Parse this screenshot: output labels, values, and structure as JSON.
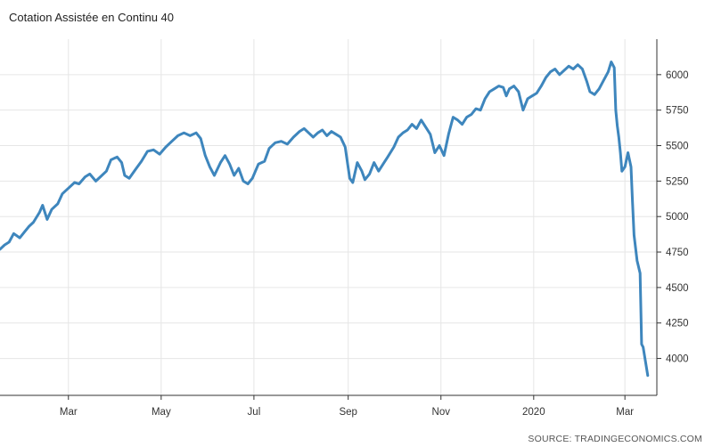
{
  "chart_data": {
    "type": "line",
    "title": "Cotation Assistée en Continu 40",
    "source": "SOURCE: TRADINGECONOMICS.COM",
    "xlabel": "",
    "ylabel": "",
    "x_ticks": [
      "Mar",
      "May",
      "Jul",
      "Sep",
      "Nov",
      "2020",
      "Mar"
    ],
    "y_ticks": [
      4000,
      4250,
      4500,
      4750,
      5000,
      5250,
      5500,
      5750,
      6000
    ],
    "ylim": [
      3740,
      6250
    ],
    "xlim": [
      "2019-01-15",
      "2020-03-22"
    ],
    "grid": true,
    "y_axis_position": "right",
    "line_color": "#3e86bd",
    "series": [
      {
        "values": [
          [
            "2019-01-15",
            4770
          ],
          [
            "2019-01-18",
            4800
          ],
          [
            "2019-01-21",
            4820
          ],
          [
            "2019-01-24",
            4880
          ],
          [
            "2019-01-28",
            4850
          ],
          [
            "2019-01-31",
            4890
          ],
          [
            "2019-02-03",
            4930
          ],
          [
            "2019-02-06",
            4960
          ],
          [
            "2019-02-10",
            5030
          ],
          [
            "2019-02-12",
            5080
          ],
          [
            "2019-02-15",
            4980
          ],
          [
            "2019-02-18",
            5050
          ],
          [
            "2019-02-22",
            5090
          ],
          [
            "2019-02-25",
            5160
          ],
          [
            "2019-03-01",
            5200
          ],
          [
            "2019-03-05",
            5240
          ],
          [
            "2019-03-08",
            5230
          ],
          [
            "2019-03-12",
            5280
          ],
          [
            "2019-03-15",
            5300
          ],
          [
            "2019-03-19",
            5250
          ],
          [
            "2019-03-22",
            5280
          ],
          [
            "2019-03-26",
            5320
          ],
          [
            "2019-03-29",
            5400
          ],
          [
            "2019-04-02",
            5420
          ],
          [
            "2019-04-05",
            5380
          ],
          [
            "2019-04-07",
            5290
          ],
          [
            "2019-04-10",
            5270
          ],
          [
            "2019-04-14",
            5330
          ],
          [
            "2019-04-18",
            5390
          ],
          [
            "2019-04-22",
            5460
          ],
          [
            "2019-04-26",
            5470
          ],
          [
            "2019-04-30",
            5440
          ],
          [
            "2019-05-04",
            5490
          ],
          [
            "2019-05-08",
            5530
          ],
          [
            "2019-05-12",
            5570
          ],
          [
            "2019-05-16",
            5590
          ],
          [
            "2019-05-20",
            5570
          ],
          [
            "2019-05-24",
            5590
          ],
          [
            "2019-05-27",
            5550
          ],
          [
            "2019-05-30",
            5430
          ],
          [
            "2019-06-02",
            5350
          ],
          [
            "2019-06-05",
            5290
          ],
          [
            "2019-06-09",
            5380
          ],
          [
            "2019-06-12",
            5430
          ],
          [
            "2019-06-15",
            5370
          ],
          [
            "2019-06-18",
            5290
          ],
          [
            "2019-06-21",
            5340
          ],
          [
            "2019-06-24",
            5250
          ],
          [
            "2019-06-27",
            5230
          ],
          [
            "2019-06-30",
            5270
          ],
          [
            "2019-07-04",
            5370
          ],
          [
            "2019-07-08",
            5390
          ],
          [
            "2019-07-11",
            5480
          ],
          [
            "2019-07-15",
            5520
          ],
          [
            "2019-07-19",
            5530
          ],
          [
            "2019-07-23",
            5510
          ],
          [
            "2019-07-27",
            5560
          ],
          [
            "2019-07-31",
            5600
          ],
          [
            "2019-08-03",
            5620
          ],
          [
            "2019-08-06",
            5590
          ],
          [
            "2019-08-09",
            5560
          ],
          [
            "2019-08-12",
            5590
          ],
          [
            "2019-08-15",
            5610
          ],
          [
            "2019-08-18",
            5570
          ],
          [
            "2019-08-21",
            5600
          ],
          [
            "2019-08-24",
            5580
          ],
          [
            "2019-08-27",
            5560
          ],
          [
            "2019-08-30",
            5490
          ],
          [
            "2019-09-02",
            5270
          ],
          [
            "2019-09-04",
            5240
          ],
          [
            "2019-09-07",
            5380
          ],
          [
            "2019-09-10",
            5320
          ],
          [
            "2019-09-12",
            5260
          ],
          [
            "2019-09-15",
            5300
          ],
          [
            "2019-09-18",
            5380
          ],
          [
            "2019-09-21",
            5320
          ],
          [
            "2019-09-24",
            5370
          ],
          [
            "2019-09-27",
            5420
          ],
          [
            "2019-10-01",
            5490
          ],
          [
            "2019-10-04",
            5560
          ],
          [
            "2019-10-07",
            5590
          ],
          [
            "2019-10-10",
            5610
          ],
          [
            "2019-10-13",
            5650
          ],
          [
            "2019-10-16",
            5620
          ],
          [
            "2019-10-19",
            5680
          ],
          [
            "2019-10-22",
            5630
          ],
          [
            "2019-10-25",
            5580
          ],
          [
            "2019-10-28",
            5450
          ],
          [
            "2019-10-31",
            5500
          ],
          [
            "2019-11-03",
            5430
          ],
          [
            "2019-11-06",
            5580
          ],
          [
            "2019-11-09",
            5700
          ],
          [
            "2019-11-12",
            5680
          ],
          [
            "2019-11-15",
            5650
          ],
          [
            "2019-11-18",
            5700
          ],
          [
            "2019-11-21",
            5720
          ],
          [
            "2019-11-24",
            5760
          ],
          [
            "2019-11-27",
            5750
          ],
          [
            "2019-11-30",
            5830
          ],
          [
            "2019-12-03",
            5880
          ],
          [
            "2019-12-06",
            5900
          ],
          [
            "2019-12-09",
            5920
          ],
          [
            "2019-12-12",
            5910
          ],
          [
            "2019-12-14",
            5850
          ],
          [
            "2019-12-16",
            5900
          ],
          [
            "2019-12-19",
            5920
          ],
          [
            "2019-12-22",
            5880
          ],
          [
            "2019-12-25",
            5750
          ],
          [
            "2019-12-28",
            5830
          ],
          [
            "2019-12-31",
            5850
          ],
          [
            "2020-01-03",
            5870
          ],
          [
            "2020-01-06",
            5920
          ],
          [
            "2020-01-09",
            5980
          ],
          [
            "2020-01-12",
            6020
          ],
          [
            "2020-01-15",
            6040
          ],
          [
            "2020-01-18",
            6000
          ],
          [
            "2020-01-21",
            6030
          ],
          [
            "2020-01-24",
            6060
          ],
          [
            "2020-01-27",
            6040
          ],
          [
            "2020-01-30",
            6070
          ],
          [
            "2020-02-02",
            6040
          ],
          [
            "2020-02-05",
            5950
          ],
          [
            "2020-02-07",
            5880
          ],
          [
            "2020-02-10",
            5860
          ],
          [
            "2020-02-13",
            5900
          ],
          [
            "2020-02-16",
            5960
          ],
          [
            "2020-02-19",
            6020
          ],
          [
            "2020-02-21",
            6090
          ],
          [
            "2020-02-23",
            6050
          ],
          [
            "2020-02-24",
            5750
          ],
          [
            "2020-02-25",
            5640
          ],
          [
            "2020-02-26",
            5560
          ],
          [
            "2020-02-27",
            5450
          ],
          [
            "2020-02-28",
            5320
          ],
          [
            "2020-03-01",
            5350
          ],
          [
            "2020-03-03",
            5450
          ],
          [
            "2020-03-05",
            5350
          ],
          [
            "2020-03-06",
            5100
          ],
          [
            "2020-03-07",
            4870
          ],
          [
            "2020-03-09",
            4690
          ],
          [
            "2020-03-11",
            4600
          ],
          [
            "2020-03-12",
            4100
          ],
          [
            "2020-03-13",
            4080
          ],
          [
            "2020-03-16",
            3880
          ]
        ]
      }
    ]
  }
}
